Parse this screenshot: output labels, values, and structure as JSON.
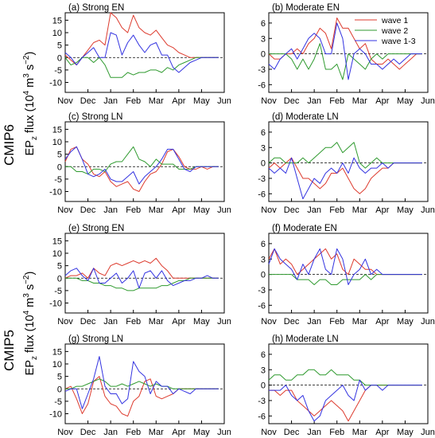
{
  "figure": {
    "row_labels": [
      "CMIP6",
      "CMIP5"
    ],
    "ylabel": {
      "pre": "EP",
      "sub": "z",
      "mid": " flux (10",
      "sup1": "4",
      "m": " m",
      "sup2": "3",
      "s": " s",
      "sup3": "−2",
      "close": ")"
    },
    "months": [
      "Nov",
      "Dec",
      "Jan",
      "Feb",
      "Mar",
      "Apr",
      "May",
      "Jun"
    ],
    "legend": [
      {
        "label": "wave 1",
        "color": "#dd3b2e"
      },
      {
        "label": "wave 2",
        "color": "#2f9a2f"
      },
      {
        "label": "wave 1-3",
        "color": "#3333e0"
      }
    ]
  },
  "chart_data": [
    {
      "title": "(a) Strong EN",
      "type": "line",
      "ylim": [
        -14,
        18
      ],
      "yticks": [
        -10,
        -5,
        0,
        5,
        10,
        15
      ],
      "x": [
        0,
        0.25,
        0.5,
        0.75,
        1,
        1.25,
        1.5,
        1.75,
        2,
        2.25,
        2.5,
        2.75,
        3,
        3.25,
        3.5,
        3.75,
        4,
        4.25,
        4.5,
        4.75,
        5,
        5.25,
        5.5,
        5.75,
        6,
        6.25,
        6.5,
        6.75
      ],
      "series": [
        {
          "name": "wave 1",
          "values": [
            1,
            -1,
            -3,
            0,
            3,
            6,
            7,
            5,
            18,
            16,
            12,
            10,
            17,
            12,
            10,
            9,
            11,
            8,
            5,
            4,
            2,
            1,
            0,
            0,
            0,
            0,
            0,
            0
          ]
        },
        {
          "name": "wave 2",
          "values": [
            0,
            -3,
            -2,
            0,
            0,
            -2,
            0,
            -3,
            -8,
            -8,
            -8,
            -6,
            -7,
            -6,
            -6,
            -5,
            -5,
            -6,
            -4,
            -5,
            -3,
            -2,
            -1,
            0,
            0,
            0,
            0,
            0
          ]
        },
        {
          "name": "wave 1-3",
          "values": [
            2,
            0,
            -3,
            0,
            2,
            4,
            0,
            0,
            10,
            9,
            1,
            6,
            9,
            5,
            2,
            5,
            6,
            1,
            1,
            -4,
            -6,
            -4,
            -2,
            -1,
            0,
            0,
            0,
            0
          ]
        }
      ]
    },
    {
      "title": "(b) Moderate EN",
      "type": "line",
      "ylim": [
        -7.5,
        8
      ],
      "yticks": [
        -6,
        -3,
        0,
        3,
        6
      ],
      "x": [
        0,
        0.25,
        0.5,
        0.75,
        1,
        1.25,
        1.5,
        1.75,
        2,
        2.25,
        2.5,
        2.75,
        3,
        3.25,
        3.5,
        3.75,
        4,
        4.25,
        4.5,
        4.75,
        5,
        5.25,
        5.5,
        5.75,
        6,
        6.25,
        6.5,
        6.75
      ],
      "series": [
        {
          "name": "wave 1",
          "values": [
            0,
            -1,
            -1,
            0,
            0,
            1,
            0,
            2,
            3,
            5,
            4,
            1,
            7,
            5,
            5,
            3,
            1,
            2,
            -1,
            -2,
            -2,
            -1,
            -2,
            -3,
            -2,
            -1,
            0,
            0
          ]
        },
        {
          "name": "wave 2",
          "values": [
            0,
            0,
            0,
            0,
            -1,
            -3,
            -1,
            -3,
            -1,
            2,
            -3,
            -3,
            -2,
            -5,
            0,
            -1,
            -2,
            -3,
            -1,
            0,
            -1,
            0,
            0,
            0,
            0,
            0,
            0,
            0
          ]
        },
        {
          "name": "wave 1-3",
          "values": [
            -2,
            -3,
            -1,
            0,
            1,
            -1,
            1,
            3,
            4,
            3,
            0,
            0,
            6,
            3,
            -5,
            0,
            1,
            0,
            -2,
            -2,
            -3,
            -2,
            -1,
            -2,
            -1,
            0,
            0,
            0
          ]
        }
      ]
    },
    {
      "title": "(c) Strong LN",
      "type": "line",
      "ylim": [
        -14,
        18
      ],
      "yticks": [
        -10,
        -5,
        0,
        5,
        10,
        15
      ],
      "x": [
        0,
        0.25,
        0.5,
        0.75,
        1,
        1.25,
        1.5,
        1.75,
        2,
        2.25,
        2.5,
        2.75,
        3,
        3.25,
        3.5,
        3.75,
        4,
        4.25,
        4.5,
        4.75,
        5,
        5.25,
        5.5,
        5.75,
        6,
        6.25,
        6.5,
        6.75
      ],
      "series": [
        {
          "name": "wave 1",
          "values": [
            2,
            7,
            8,
            3,
            1,
            -3,
            -4,
            -2,
            -6,
            -8,
            -7,
            -6,
            -9,
            -10,
            -6,
            -3,
            -2,
            1,
            6,
            7,
            4,
            0,
            -1,
            -1,
            0,
            -1,
            0,
            0
          ]
        },
        {
          "name": "wave 2",
          "values": [
            0,
            0,
            -2,
            -2,
            -3,
            -1,
            -1,
            -2,
            1,
            2,
            2,
            5,
            8,
            3,
            2,
            0,
            3,
            1,
            1,
            1,
            -1,
            -1,
            -1,
            0,
            0,
            0,
            0,
            0
          ]
        },
        {
          "name": "wave 1-3",
          "values": [
            3,
            6,
            8,
            3,
            -3,
            -4,
            -3,
            -1,
            -5,
            -6,
            -6,
            -4,
            -2,
            -7,
            -4,
            -2,
            0,
            3,
            7,
            7,
            3,
            -1,
            -2,
            0,
            0,
            0,
            0,
            0
          ]
        }
      ]
    },
    {
      "title": "(d) Moderate LN",
      "type": "line",
      "ylim": [
        -7.5,
        8
      ],
      "yticks": [
        -6,
        -3,
        0,
        3,
        6
      ],
      "x": [
        0,
        0.25,
        0.5,
        0.75,
        1,
        1.25,
        1.5,
        1.75,
        2,
        2.25,
        2.5,
        2.75,
        3,
        3.25,
        3.5,
        3.75,
        4,
        4.25,
        4.5,
        4.75,
        5,
        5.25,
        5.5,
        5.75,
        6,
        6.25,
        6.5,
        6.75
      ],
      "series": [
        {
          "name": "wave 1",
          "values": [
            -1,
            0,
            -1,
            0,
            1,
            -1,
            -3,
            -3,
            -4,
            -5,
            -4,
            -2,
            -2,
            -1,
            -3,
            -5,
            -6,
            -5,
            -3,
            -2,
            -1,
            -1,
            0,
            0,
            0,
            0,
            0,
            0
          ]
        },
        {
          "name": "wave 2",
          "values": [
            0,
            1,
            1,
            0,
            0,
            0,
            1,
            0,
            1,
            2,
            3,
            3,
            4,
            2,
            3,
            4,
            0,
            -1,
            0,
            1,
            0,
            0,
            0,
            0,
            0,
            0,
            0,
            0
          ]
        },
        {
          "name": "wave 1-3",
          "values": [
            -1,
            -2,
            -1,
            -2,
            1,
            -3,
            -7,
            -5,
            -3,
            -4,
            -2,
            -1,
            -2,
            0,
            -2,
            1,
            -1,
            -2,
            -1,
            -1,
            0,
            -1,
            0,
            0,
            0,
            0,
            0,
            0
          ]
        }
      ]
    },
    {
      "title": "(e) Strong EN",
      "type": "line",
      "ylim": [
        -14,
        18
      ],
      "yticks": [
        -10,
        -5,
        0,
        5,
        10,
        15
      ],
      "x": [
        0,
        0.25,
        0.5,
        0.75,
        1,
        1.25,
        1.5,
        1.75,
        2,
        2.25,
        2.5,
        2.75,
        3,
        3.25,
        3.5,
        3.75,
        4,
        4.25,
        4.5,
        4.75,
        5,
        5.25,
        5.5,
        5.75,
        6,
        6.25,
        6.5,
        6.75
      ],
      "series": [
        {
          "name": "wave 1",
          "values": [
            0,
            1,
            1,
            2,
            0,
            4,
            2,
            1,
            5,
            6,
            5,
            6,
            7,
            6,
            7,
            6,
            8,
            5,
            3,
            0,
            0,
            0,
            0,
            0,
            0,
            0,
            0,
            0
          ]
        },
        {
          "name": "wave 2",
          "values": [
            0,
            0,
            0,
            -1,
            -1,
            -2,
            -2,
            -3,
            -3,
            -4,
            -4,
            -5,
            -5,
            -4,
            -4,
            -4,
            -4,
            -3,
            -3,
            -2,
            -1,
            -1,
            0,
            0,
            0,
            0,
            0,
            0
          ]
        },
        {
          "name": "wave 1-3",
          "values": [
            1,
            3,
            4,
            1,
            -1,
            4,
            -2,
            -2,
            0,
            2,
            -2,
            0,
            3,
            -4,
            2,
            3,
            0,
            3,
            -1,
            -3,
            -2,
            -1,
            -1,
            0,
            0,
            1,
            0,
            0
          ]
        }
      ]
    },
    {
      "title": "(f) Moderate EN",
      "type": "line",
      "ylim": [
        -7.5,
        8
      ],
      "yticks": [
        -6,
        -3,
        0,
        3,
        6
      ],
      "x": [
        0,
        0.25,
        0.5,
        0.75,
        1,
        1.25,
        1.5,
        1.75,
        2,
        2.25,
        2.5,
        2.75,
        3,
        3.25,
        3.5,
        3.75,
        4,
        4.25,
        4.5,
        4.75,
        5,
        5.25,
        5.5,
        5.75,
        6,
        6.25,
        6.5,
        6.75
      ],
      "series": [
        {
          "name": "wave 1",
          "values": [
            3,
            5,
            2,
            3,
            2,
            0,
            1,
            2,
            3,
            4,
            5,
            3,
            4,
            1,
            0,
            3,
            2,
            1,
            1,
            0,
            0,
            0,
            0,
            0,
            0,
            0,
            0,
            0
          ]
        },
        {
          "name": "wave 2",
          "values": [
            0,
            0,
            0,
            0,
            0,
            -1,
            -1,
            -1,
            -2,
            -1,
            -1,
            -2,
            -2,
            -1,
            -1,
            -1,
            -1,
            0,
            -1,
            0,
            0,
            0,
            0,
            0,
            0,
            0,
            0,
            0
          ]
        },
        {
          "name": "wave 1-3",
          "values": [
            2,
            5,
            3,
            2,
            1,
            -1,
            2,
            0,
            3,
            5,
            1,
            0,
            5,
            3,
            -2,
            0,
            1,
            3,
            0,
            1,
            0,
            0,
            0,
            0,
            0,
            0,
            0,
            0
          ]
        }
      ]
    },
    {
      "title": "(g) Strong LN",
      "type": "line",
      "ylim": [
        -14,
        18
      ],
      "yticks": [
        -10,
        -5,
        0,
        5,
        10,
        15
      ],
      "x": [
        0,
        0.25,
        0.5,
        0.75,
        1,
        1.25,
        1.5,
        1.75,
        2,
        2.25,
        2.5,
        2.75,
        3,
        3.25,
        3.5,
        3.75,
        4,
        4.25,
        4.5,
        4.75,
        5,
        5.25,
        5.5,
        5.75,
        6,
        6.25,
        6.5,
        6.75
      ],
      "series": [
        {
          "name": "wave 1",
          "values": [
            0,
            1,
            -4,
            -10,
            -6,
            3,
            5,
            -3,
            -6,
            -7,
            -10,
            -11,
            -5,
            -3,
            3,
            4,
            -3,
            -4,
            -3,
            -2,
            0,
            0,
            0,
            0,
            0,
            0,
            0,
            0
          ]
        },
        {
          "name": "wave 2",
          "values": [
            0,
            0,
            1,
            1,
            2,
            3,
            4,
            3,
            1,
            1,
            2,
            1,
            2,
            3,
            2,
            1,
            2,
            1,
            1,
            0,
            0,
            0,
            0,
            0,
            0,
            0,
            0,
            0
          ]
        },
        {
          "name": "wave 1-3",
          "values": [
            -1,
            0,
            0,
            -8,
            -2,
            4,
            13,
            1,
            -2,
            -2,
            -6,
            -4,
            11,
            7,
            5,
            -2,
            3,
            1,
            1,
            -2,
            0,
            -1,
            -2,
            0,
            0,
            0,
            0,
            0
          ]
        }
      ]
    },
    {
      "title": "(h) Moderate LN",
      "type": "line",
      "ylim": [
        -7.5,
        8
      ],
      "yticks": [
        -6,
        -3,
        0,
        3,
        6
      ],
      "x": [
        0,
        0.25,
        0.5,
        0.75,
        1,
        1.25,
        1.5,
        1.75,
        2,
        2.25,
        2.5,
        2.75,
        3,
        3.25,
        3.5,
        3.75,
        4,
        4.25,
        4.5,
        4.75,
        5,
        5.25,
        5.5,
        5.75,
        6,
        6.25,
        6.5,
        6.75
      ],
      "series": [
        {
          "name": "wave 1",
          "values": [
            -1,
            -1,
            -2,
            -1,
            -1,
            -3,
            -4,
            -5,
            -6,
            -5,
            -4,
            -3,
            -4,
            -5,
            -7,
            -5,
            -3,
            -1,
            0,
            0,
            0,
            0,
            0,
            0,
            0,
            0,
            0,
            0
          ]
        },
        {
          "name": "wave 2",
          "values": [
            1,
            2,
            2,
            1,
            1,
            2,
            2,
            3,
            3,
            2,
            2,
            3,
            2,
            2,
            2,
            1,
            1,
            0,
            0,
            0,
            0,
            0,
            0,
            0,
            0,
            0,
            0,
            0
          ]
        },
        {
          "name": "wave 1-3",
          "values": [
            -1,
            -1,
            -1,
            0,
            -2,
            -3,
            -2,
            -5,
            -7,
            -6,
            -3,
            -2,
            -1,
            0,
            -2,
            -3,
            1,
            -1,
            0,
            0,
            -1,
            0,
            0,
            0,
            0,
            0,
            0,
            0
          ]
        }
      ]
    }
  ]
}
